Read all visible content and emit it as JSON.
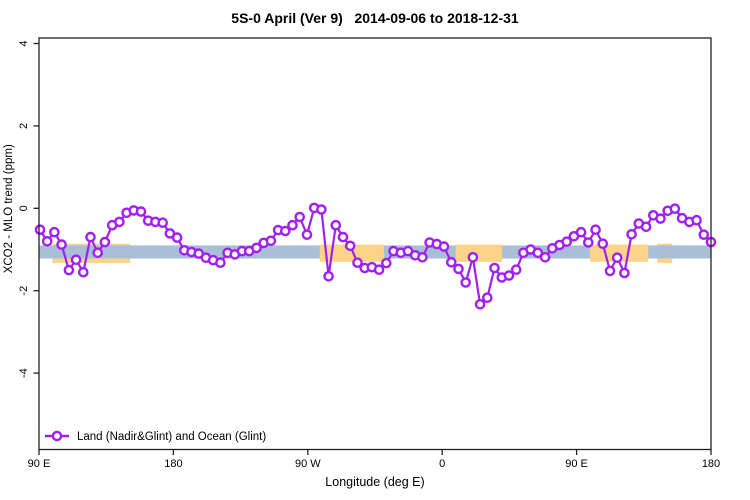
{
  "header": {
    "title": "5S-0 April (Ver 9)   2014-09-06 to 2018-12-31"
  },
  "legend": {
    "label": "Land (Nadir&Glint) and Ocean (Glint)"
  },
  "chart_data": {
    "type": "line",
    "title": "5S-0 April (Ver 9)   2014-09-06 to 2018-12-31",
    "xlabel": "Longitude (deg E)",
    "ylabel": "XCO2 - MLO trend (ppm)",
    "x_tick_labels": [
      "90 E",
      "180",
      "90 W",
      "0",
      "90 E",
      "180"
    ],
    "x_tick_deg": [
      90,
      180,
      270,
      360,
      450,
      540
    ],
    "xlim_deg": [
      90,
      540
    ],
    "y_ticks": [
      4,
      2,
      0,
      -2,
      -4
    ],
    "ylim": [
      -5.9,
      4.15
    ],
    "grid": false,
    "legend_position": "bottom-left-inside",
    "colors": {
      "series": "#A020F0",
      "band_blue": "#A9BFD8",
      "band_orange": "#FBD48A",
      "axis": "#222222"
    },
    "bands": [
      {
        "name": "blue-band",
        "color": "#A9BFD8",
        "value_from": -1.22,
        "value_to": -0.9,
        "ranges_deg": [
          [
            90,
            540
          ]
        ],
        "layer": "middle"
      },
      {
        "name": "orange-band-under",
        "color": "#FBD48A",
        "value_from": -1.33,
        "value_to": -0.86,
        "ranges_deg": [
          [
            99,
            151
          ],
          [
            504,
            514
          ]
        ],
        "layer": "under"
      },
      {
        "name": "orange-band-over",
        "color": "#FBD48A",
        "value_from": -1.3,
        "value_to": -0.88,
        "ranges_deg": [
          [
            278,
            321
          ],
          [
            369,
            400
          ],
          [
            459,
            498
          ]
        ],
        "layer": "over"
      }
    ],
    "series": [
      {
        "name": "Land (Nadir&Glint) and Ocean (Glint)",
        "color": "#A020F0",
        "marker": "open-circle",
        "x_start_deg": 90,
        "x_end_deg": 540,
        "values": [
          -0.52,
          -0.8,
          -0.58,
          -0.88,
          -1.5,
          -1.25,
          -1.55,
          -0.7,
          -1.08,
          -0.82,
          -0.41,
          -0.33,
          -0.11,
          -0.05,
          -0.08,
          -0.3,
          -0.33,
          -0.35,
          -0.61,
          -0.71,
          -1.02,
          -1.06,
          -1.1,
          -1.2,
          -1.26,
          -1.32,
          -1.08,
          -1.12,
          -1.04,
          -1.04,
          -0.96,
          -0.84,
          -0.79,
          -0.53,
          -0.55,
          -0.41,
          -0.21,
          -0.64,
          0.01,
          -0.03,
          -1.65,
          -0.41,
          -0.7,
          -0.91,
          -1.32,
          -1.45,
          -1.43,
          -1.49,
          -1.33,
          -1.04,
          -1.08,
          -1.04,
          -1.14,
          -1.19,
          -0.83,
          -0.87,
          -0.93,
          -1.31,
          -1.47,
          -1.8,
          -1.19,
          -2.33,
          -2.17,
          -1.45,
          -1.68,
          -1.63,
          -1.49,
          -1.08,
          -1.0,
          -1.08,
          -1.19,
          -0.97,
          -0.89,
          -0.81,
          -0.68,
          -0.58,
          -0.83,
          -0.52,
          -0.86,
          -1.52,
          -1.2,
          -1.57,
          -0.63,
          -0.37,
          -0.45,
          -0.17,
          -0.25,
          -0.06,
          -0.01,
          -0.24,
          -0.33,
          -0.29,
          -0.64,
          -0.82
        ]
      }
    ]
  }
}
